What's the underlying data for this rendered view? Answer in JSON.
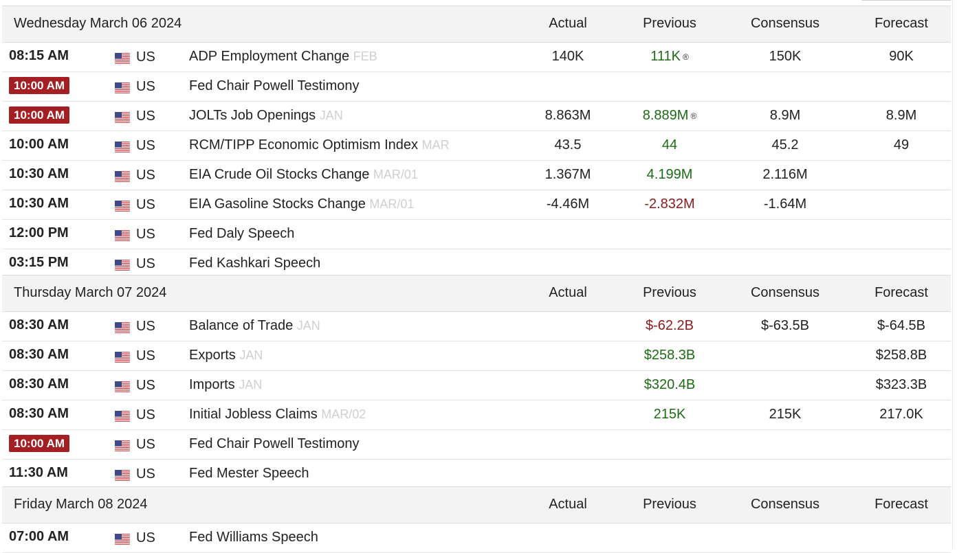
{
  "columns": {
    "actual": "Actual",
    "previous": "Previous",
    "consensus": "Consensus",
    "forecast": "Forecast"
  },
  "days": [
    {
      "title": "Wednesday March 06 2024",
      "events": [
        {
          "time": "08:15 AM",
          "highlight": false,
          "country": "US",
          "name": "ADP Employment Change",
          "ref": "FEB",
          "actual": "140K",
          "previous": "111K",
          "previous_color": "green",
          "revised": "®",
          "consensus": "150K",
          "forecast": "90K"
        },
        {
          "time": "10:00 AM",
          "highlight": true,
          "country": "US",
          "name": "Fed Chair Powell Testimony",
          "ref": "",
          "actual": "",
          "previous": "",
          "previous_color": "",
          "revised": "",
          "consensus": "",
          "forecast": ""
        },
        {
          "time": "10:00 AM",
          "highlight": true,
          "country": "US",
          "name": "JOLTs Job Openings",
          "ref": "JAN",
          "actual": "8.863M",
          "previous": "8.889M",
          "previous_color": "green",
          "revised": "®",
          "consensus": "8.9M",
          "forecast": "8.9M"
        },
        {
          "time": "10:00 AM",
          "highlight": false,
          "country": "US",
          "name": "RCM/TIPP Economic Optimism Index",
          "ref": "MAR",
          "actual": "43.5",
          "previous": "44",
          "previous_color": "green",
          "revised": "",
          "consensus": "45.2",
          "forecast": "49"
        },
        {
          "time": "10:30 AM",
          "highlight": false,
          "country": "US",
          "name": "EIA Crude Oil Stocks Change",
          "ref": "MAR/01",
          "actual": "1.367M",
          "previous": "4.199M",
          "previous_color": "green",
          "revised": "",
          "consensus": "2.116M",
          "forecast": ""
        },
        {
          "time": "10:30 AM",
          "highlight": false,
          "country": "US",
          "name": "EIA Gasoline Stocks Change",
          "ref": "MAR/01",
          "actual": "-4.46M",
          "previous": "-2.832M",
          "previous_color": "red",
          "revised": "",
          "consensus": "-1.64M",
          "forecast": ""
        },
        {
          "time": "12:00 PM",
          "highlight": false,
          "country": "US",
          "name": "Fed Daly Speech",
          "ref": "",
          "actual": "",
          "previous": "",
          "previous_color": "",
          "revised": "",
          "consensus": "",
          "forecast": ""
        },
        {
          "time": "03:15 PM",
          "highlight": false,
          "country": "US",
          "name": "Fed Kashkari Speech",
          "ref": "",
          "actual": "",
          "previous": "",
          "previous_color": "",
          "revised": "",
          "consensus": "",
          "forecast": ""
        }
      ]
    },
    {
      "title": "Thursday March 07 2024",
      "events": [
        {
          "time": "08:30 AM",
          "highlight": false,
          "country": "US",
          "name": "Balance of Trade",
          "ref": "JAN",
          "actual": "",
          "previous": "$-62.2B",
          "previous_color": "red",
          "revised": "",
          "consensus": "$-63.5B",
          "forecast": "$-64.5B"
        },
        {
          "time": "08:30 AM",
          "highlight": false,
          "country": "US",
          "name": "Exports",
          "ref": "JAN",
          "actual": "",
          "previous": "$258.3B",
          "previous_color": "green",
          "revised": "",
          "consensus": "",
          "forecast": "$258.8B"
        },
        {
          "time": "08:30 AM",
          "highlight": false,
          "country": "US",
          "name": "Imports",
          "ref": "JAN",
          "actual": "",
          "previous": "$320.4B",
          "previous_color": "green",
          "revised": "",
          "consensus": "",
          "forecast": "$323.3B"
        },
        {
          "time": "08:30 AM",
          "highlight": false,
          "country": "US",
          "name": "Initial Jobless Claims",
          "ref": "MAR/02",
          "actual": "",
          "previous": "215K",
          "previous_color": "green",
          "revised": "",
          "consensus": "215K",
          "forecast": "217.0K"
        },
        {
          "time": "10:00 AM",
          "highlight": true,
          "country": "US",
          "name": "Fed Chair Powell Testimony",
          "ref": "",
          "actual": "",
          "previous": "",
          "previous_color": "",
          "revised": "",
          "consensus": "",
          "forecast": ""
        },
        {
          "time": "11:30 AM",
          "highlight": false,
          "country": "US",
          "name": "Fed Mester Speech",
          "ref": "",
          "actual": "",
          "previous": "",
          "previous_color": "",
          "revised": "",
          "consensus": "",
          "forecast": ""
        }
      ]
    },
    {
      "title": "Friday March 08 2024",
      "events": [
        {
          "time": "07:00 AM",
          "highlight": false,
          "country": "US",
          "name": "Fed Williams Speech",
          "ref": "",
          "actual": "",
          "previous": "",
          "previous_color": "",
          "revised": "",
          "consensus": "",
          "forecast": ""
        }
      ]
    }
  ]
}
